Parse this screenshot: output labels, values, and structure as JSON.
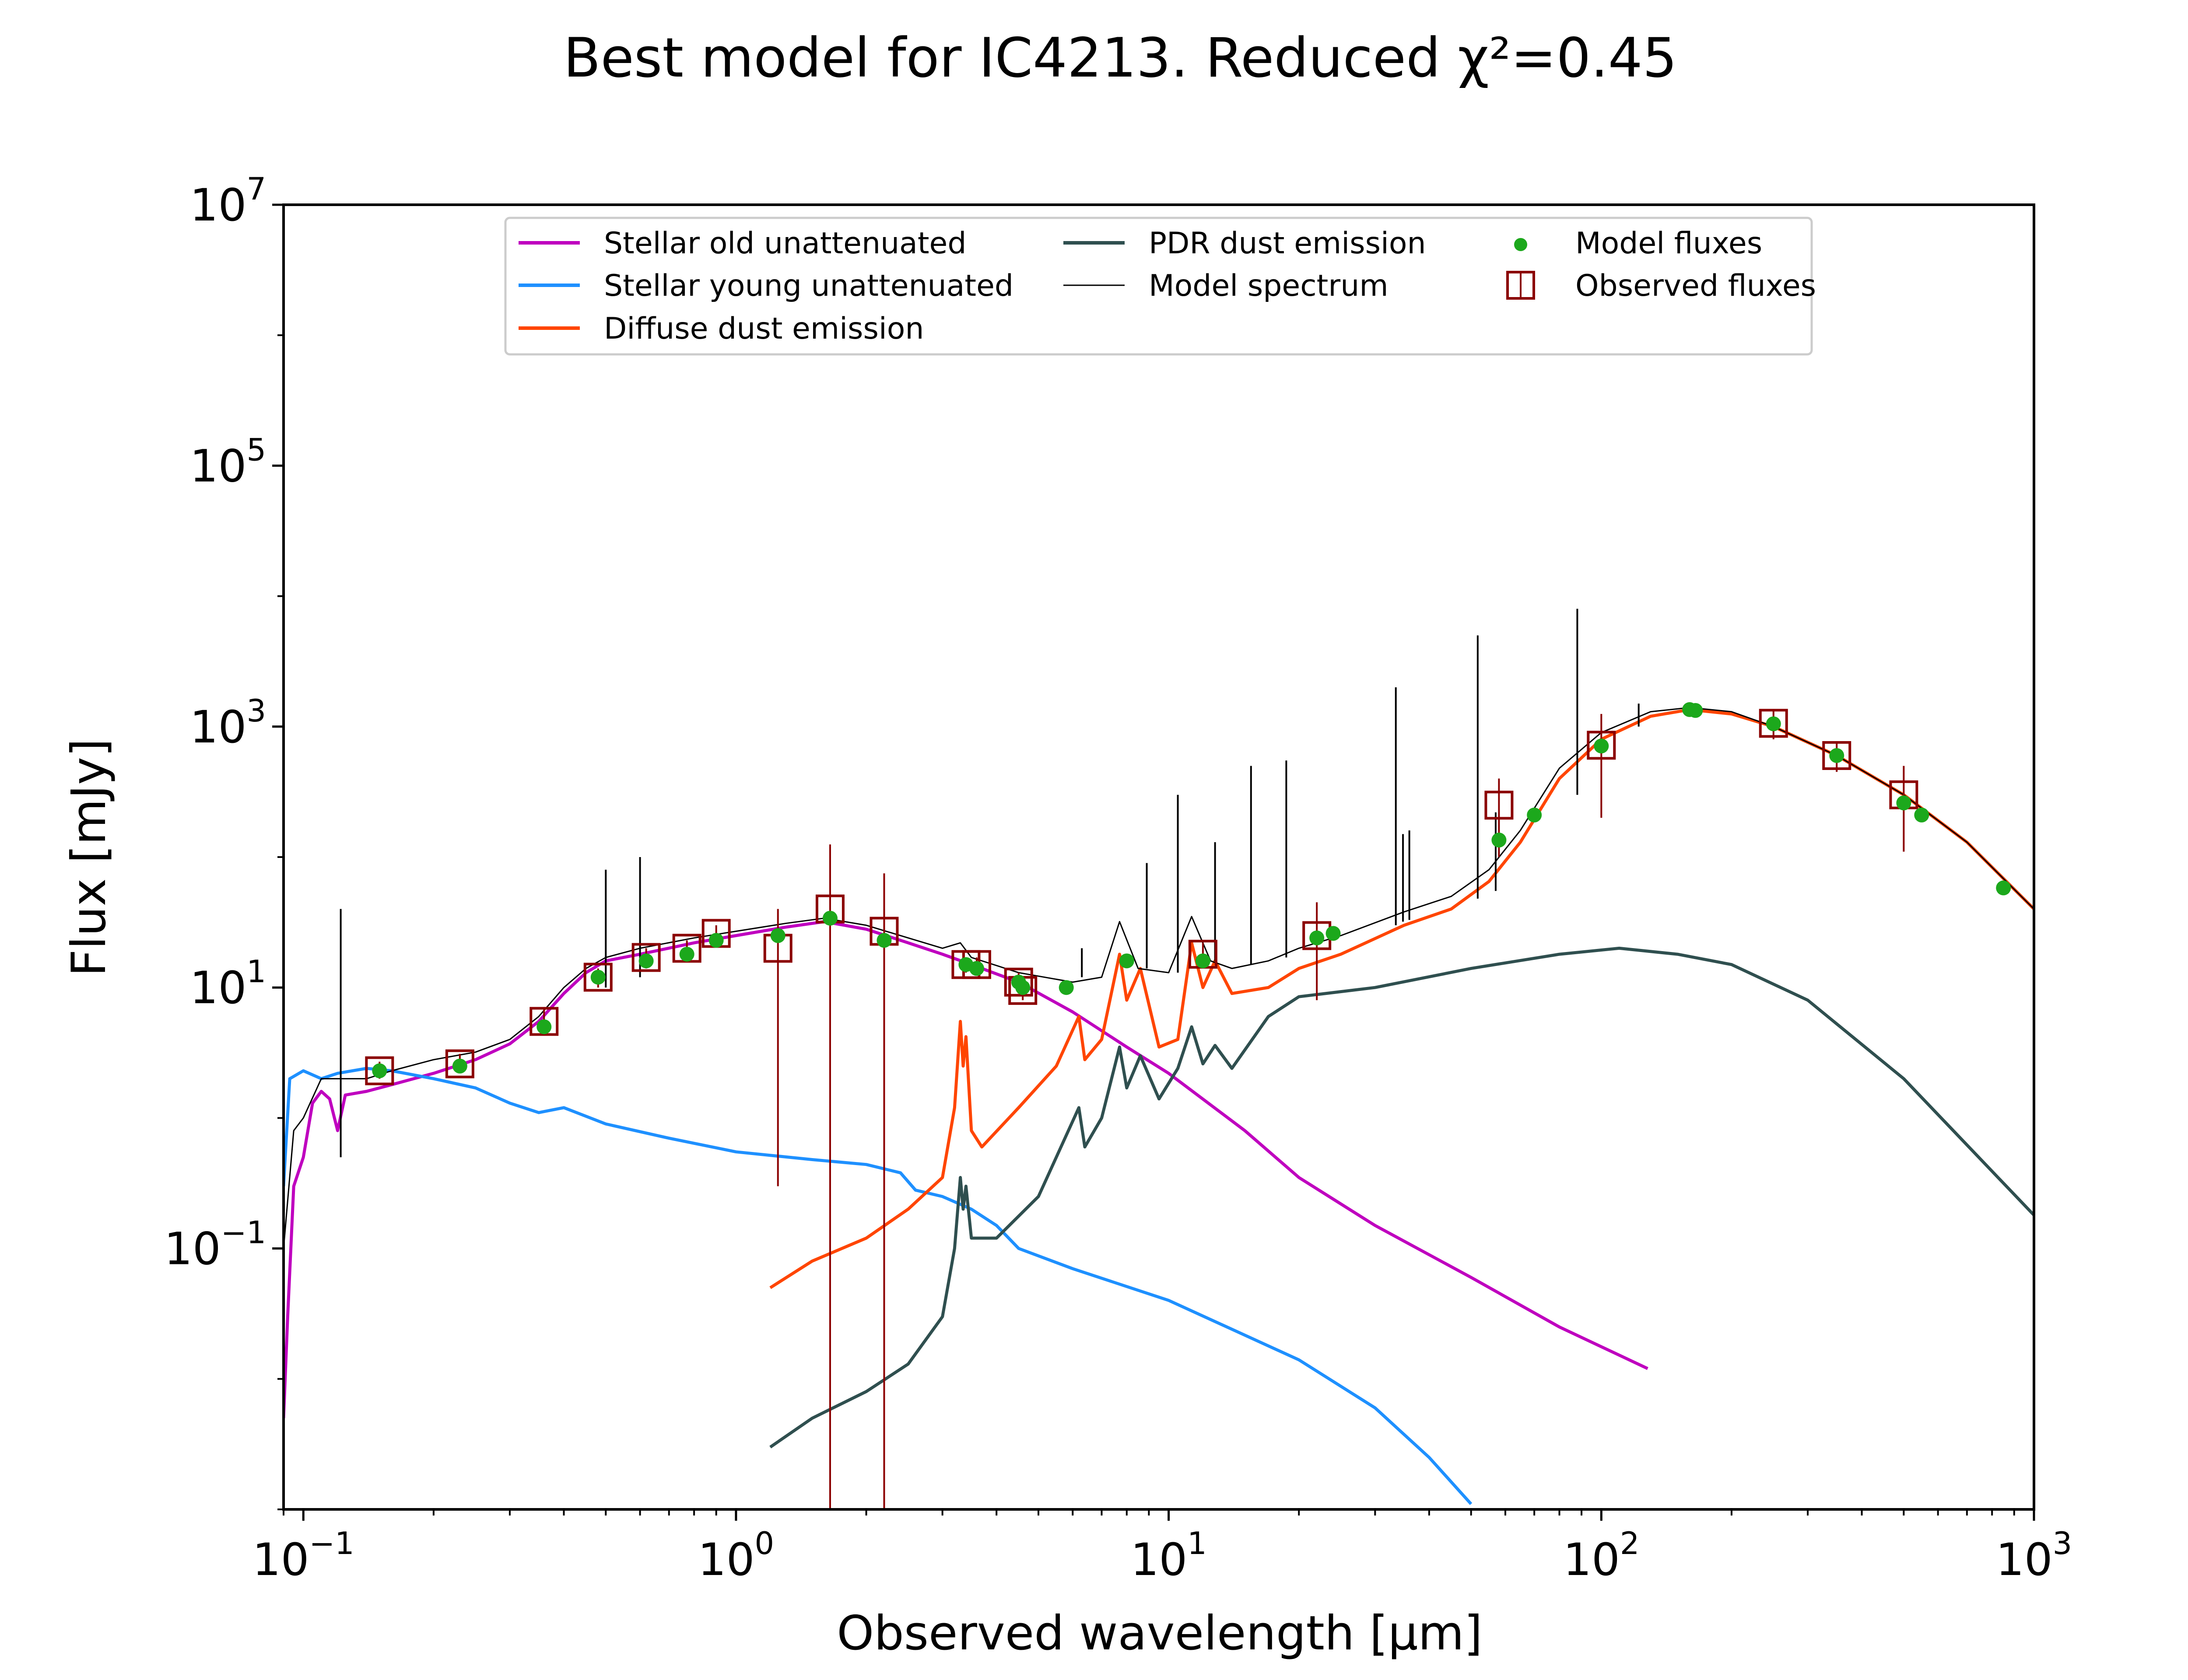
{
  "chart_data": {
    "type": "line",
    "title": "Best model for IC4213. Reduced χ²=0.45",
    "xlabel": "Observed wavelength [μm]",
    "ylabel": "Flux [mJy]",
    "xscale": "log",
    "yscale": "log",
    "xlim": [
      0.09,
      1000
    ],
    "ylim": [
      0.001,
      10000000
    ],
    "x_ticks": [
      {
        "value": 0.1,
        "base": "10",
        "exp": "−1"
      },
      {
        "value": 1,
        "base": "10",
        "exp": "0"
      },
      {
        "value": 10,
        "base": "10",
        "exp": "1"
      },
      {
        "value": 100,
        "base": "10",
        "exp": "2"
      },
      {
        "value": 1000,
        "base": "10",
        "exp": "3"
      }
    ],
    "y_ticks": [
      {
        "value": 0.1,
        "base": "10",
        "exp": "−1"
      },
      {
        "value": 10,
        "base": "10",
        "exp": "1"
      },
      {
        "value": 1000,
        "base": "10",
        "exp": "3"
      },
      {
        "value": 100000,
        "base": "10",
        "exp": "5"
      },
      {
        "value": 10000000,
        "base": "10",
        "exp": "7"
      }
    ],
    "grid": false,
    "legend_position": "top-center",
    "legend": [
      {
        "label": "Stellar old unattenuated",
        "marker": "line",
        "color": "#bf00bf"
      },
      {
        "label": "Stellar young unattenuated",
        "marker": "line",
        "color": "#1e90ff"
      },
      {
        "label": "Diffuse dust emission",
        "marker": "line",
        "color": "#ff4500"
      },
      {
        "label": "PDR dust emission",
        "marker": "line",
        "color": "#2f4f4f"
      },
      {
        "label": "Model spectrum",
        "marker": "thinline",
        "color": "#000000"
      },
      {
        "label": "Model fluxes",
        "marker": "dot",
        "color": "#1ca81c"
      },
      {
        "label": "Observed fluxes",
        "marker": "square",
        "color": "#8b0000"
      }
    ],
    "series": [
      {
        "name": "Stellar old unattenuated",
        "color": "#bf00bf",
        "width": 7,
        "points": [
          [
            0.09,
            0.005
          ],
          [
            0.092,
            0.03
          ],
          [
            0.095,
            0.3
          ],
          [
            0.1,
            0.5
          ],
          [
            0.105,
            1.3
          ],
          [
            0.11,
            1.6
          ],
          [
            0.115,
            1.4
          ],
          [
            0.12,
            0.8
          ],
          [
            0.125,
            1.5
          ],
          [
            0.14,
            1.6
          ],
          [
            0.16,
            1.8
          ],
          [
            0.2,
            2.2
          ],
          [
            0.25,
            2.8
          ],
          [
            0.3,
            3.7
          ],
          [
            0.35,
            5.5
          ],
          [
            0.4,
            9
          ],
          [
            0.45,
            13
          ],
          [
            0.5,
            16
          ],
          [
            0.6,
            18
          ],
          [
            0.8,
            22
          ],
          [
            1.0,
            25
          ],
          [
            1.3,
            29
          ],
          [
            1.6,
            32
          ],
          [
            2.0,
            28
          ],
          [
            2.5,
            22
          ],
          [
            3.0,
            18
          ],
          [
            3.5,
            15
          ],
          [
            4.5,
            11
          ],
          [
            6,
            6.5
          ],
          [
            8,
            3.5
          ],
          [
            10,
            2.2
          ],
          [
            15,
            0.8
          ],
          [
            20,
            0.35
          ],
          [
            30,
            0.15
          ],
          [
            50,
            0.06
          ],
          [
            80,
            0.025
          ],
          [
            128,
            0.012
          ]
        ]
      },
      {
        "name": "Stellar young unattenuated",
        "color": "#1e90ff",
        "width": 7,
        "points": [
          [
            0.09,
            0.3
          ],
          [
            0.093,
            2
          ],
          [
            0.1,
            2.3
          ],
          [
            0.11,
            2.0
          ],
          [
            0.12,
            2.2
          ],
          [
            0.14,
            2.4
          ],
          [
            0.16,
            2.3
          ],
          [
            0.2,
            2.0
          ],
          [
            0.25,
            1.7
          ],
          [
            0.3,
            1.3
          ],
          [
            0.35,
            1.1
          ],
          [
            0.4,
            1.2
          ],
          [
            0.5,
            0.9
          ],
          [
            0.7,
            0.7
          ],
          [
            1.0,
            0.55
          ],
          [
            1.5,
            0.48
          ],
          [
            2.0,
            0.44
          ],
          [
            2.4,
            0.38
          ],
          [
            2.6,
            0.28
          ],
          [
            3.0,
            0.25
          ],
          [
            3.5,
            0.2
          ],
          [
            4.0,
            0.15
          ],
          [
            4.5,
            0.1
          ],
          [
            6,
            0.07
          ],
          [
            10,
            0.04
          ],
          [
            20,
            0.014
          ],
          [
            30,
            0.006
          ],
          [
            40,
            0.0025
          ],
          [
            50,
            0.0011
          ]
        ]
      },
      {
        "name": "Diffuse dust emission",
        "color": "#ff4500",
        "width": 7,
        "points": [
          [
            1.2,
            0.05
          ],
          [
            1.5,
            0.08
          ],
          [
            2,
            0.12
          ],
          [
            2.5,
            0.2
          ],
          [
            3.0,
            0.35
          ],
          [
            3.2,
            1.2
          ],
          [
            3.3,
            5.5
          ],
          [
            3.35,
            2.5
          ],
          [
            3.4,
            4.2
          ],
          [
            3.5,
            0.8
          ],
          [
            3.7,
            0.6
          ],
          [
            4.5,
            1.2
          ],
          [
            5.5,
            2.5
          ],
          [
            6.2,
            6
          ],
          [
            6.4,
            2.8
          ],
          [
            7.0,
            4
          ],
          [
            7.7,
            18
          ],
          [
            8.0,
            8
          ],
          [
            8.6,
            14
          ],
          [
            9.5,
            3.5
          ],
          [
            10.5,
            4
          ],
          [
            11.3,
            22
          ],
          [
            12,
            10
          ],
          [
            12.8,
            16
          ],
          [
            14,
            9
          ],
          [
            17,
            10
          ],
          [
            20,
            14
          ],
          [
            25,
            18
          ],
          [
            35,
            30
          ],
          [
            45,
            40
          ],
          [
            55,
            65
          ],
          [
            65,
            130
          ],
          [
            80,
            400
          ],
          [
            100,
            800
          ],
          [
            130,
            1200
          ],
          [
            160,
            1350
          ],
          [
            200,
            1250
          ],
          [
            250,
            1000
          ],
          [
            350,
            600
          ],
          [
            500,
            300
          ],
          [
            700,
            130
          ],
          [
            1000,
            40
          ]
        ]
      },
      {
        "name": "PDR dust emission",
        "color": "#2f4f4f",
        "width": 7,
        "points": [
          [
            1.2,
            0.003
          ],
          [
            1.5,
            0.005
          ],
          [
            2,
            0.008
          ],
          [
            2.5,
            0.013
          ],
          [
            3.0,
            0.03
          ],
          [
            3.2,
            0.1
          ],
          [
            3.3,
            0.35
          ],
          [
            3.35,
            0.2
          ],
          [
            3.4,
            0.3
          ],
          [
            3.5,
            0.12
          ],
          [
            4,
            0.12
          ],
          [
            5,
            0.25
          ],
          [
            6.2,
            1.2
          ],
          [
            6.4,
            0.6
          ],
          [
            7.0,
            1.0
          ],
          [
            7.7,
            3.5
          ],
          [
            8.0,
            1.7
          ],
          [
            8.6,
            3.0
          ],
          [
            9.5,
            1.4
          ],
          [
            10.5,
            2.4
          ],
          [
            11.3,
            5.0
          ],
          [
            12,
            2.6
          ],
          [
            12.8,
            3.6
          ],
          [
            14,
            2.4
          ],
          [
            17,
            6
          ],
          [
            20,
            8.5
          ],
          [
            30,
            10
          ],
          [
            50,
            14
          ],
          [
            80,
            18
          ],
          [
            110,
            20
          ],
          [
            150,
            18
          ],
          [
            200,
            15
          ],
          [
            300,
            8
          ],
          [
            500,
            2
          ],
          [
            1000,
            0.18
          ]
        ]
      },
      {
        "name": "Model spectrum",
        "color": "#000000",
        "width": 3,
        "points": [
          [
            0.09,
            0.1
          ],
          [
            0.095,
            0.8
          ],
          [
            0.1,
            1.0
          ],
          [
            0.11,
            2.0
          ],
          [
            0.14,
            2.0
          ],
          [
            0.16,
            2.3
          ],
          [
            0.2,
            2.8
          ],
          [
            0.25,
            3.2
          ],
          [
            0.3,
            4
          ],
          [
            0.35,
            6
          ],
          [
            0.4,
            10
          ],
          [
            0.45,
            14
          ],
          [
            0.5,
            17
          ],
          [
            0.6,
            20
          ],
          [
            0.8,
            24
          ],
          [
            1.0,
            27
          ],
          [
            1.3,
            31
          ],
          [
            1.6,
            34
          ],
          [
            2.0,
            30
          ],
          [
            2.5,
            24
          ],
          [
            3.0,
            20
          ],
          [
            3.3,
            22
          ],
          [
            3.5,
            17
          ],
          [
            4.5,
            13
          ],
          [
            6,
            11
          ],
          [
            7,
            12
          ],
          [
            7.7,
            32
          ],
          [
            8.5,
            14
          ],
          [
            10,
            13
          ],
          [
            11.3,
            35
          ],
          [
            12.5,
            16
          ],
          [
            14,
            14
          ],
          [
            17,
            16
          ],
          [
            20,
            20
          ],
          [
            25,
            25
          ],
          [
            35,
            38
          ],
          [
            45,
            50
          ],
          [
            55,
            80
          ],
          [
            65,
            160
          ],
          [
            80,
            480
          ],
          [
            100,
            900
          ],
          [
            130,
            1300
          ],
          [
            160,
            1400
          ],
          [
            200,
            1300
          ],
          [
            250,
            1000
          ],
          [
            350,
            600
          ],
          [
            500,
            300
          ],
          [
            700,
            130
          ],
          [
            1000,
            40
          ]
        ],
        "lines": [
          [
            0.122,
            0.5,
            40
          ],
          [
            0.5,
            10,
            80
          ],
          [
            0.6,
            12,
            100
          ],
          [
            2.2,
            20,
            40
          ],
          [
            6.3,
            12,
            20
          ],
          [
            8.9,
            14,
            90
          ],
          [
            10.5,
            13,
            300
          ],
          [
            12.8,
            16,
            130
          ],
          [
            15.5,
            15,
            500
          ],
          [
            18.7,
            17,
            550
          ],
          [
            33.5,
            30,
            2000
          ],
          [
            34.8,
            32,
            150
          ],
          [
            36,
            33,
            160
          ],
          [
            51.8,
            48,
            5000
          ],
          [
            57,
            55,
            220
          ],
          [
            88,
            300,
            8000
          ],
          [
            122,
            1000,
            1500
          ]
        ]
      }
    ],
    "model_fluxes": {
      "color": "#1ca81c",
      "points": [
        [
          0.15,
          2.3
        ],
        [
          0.23,
          2.5
        ],
        [
          0.36,
          5
        ],
        [
          0.48,
          12
        ],
        [
          0.62,
          16
        ],
        [
          0.77,
          18
        ],
        [
          0.9,
          23
        ],
        [
          1.25,
          25
        ],
        [
          1.65,
          34
        ],
        [
          2.2,
          23
        ],
        [
          3.4,
          15
        ],
        [
          3.6,
          14
        ],
        [
          4.5,
          11
        ],
        [
          4.6,
          10
        ],
        [
          5.8,
          10
        ],
        [
          8.0,
          16
        ],
        [
          12,
          16
        ],
        [
          22,
          24
        ],
        [
          24,
          26
        ],
        [
          58,
          135
        ],
        [
          70,
          210
        ],
        [
          100,
          710
        ],
        [
          160,
          1350
        ],
        [
          165,
          1330
        ],
        [
          250,
          1050
        ],
        [
          350,
          600
        ],
        [
          500,
          260
        ],
        [
          550,
          210
        ],
        [
          850,
          58
        ]
      ]
    },
    "observed_fluxes": {
      "color": "#8b0000",
      "points": [
        {
          "x": 0.15,
          "y": 2.3,
          "lo": 2.0,
          "hi": 2.7
        },
        {
          "x": 0.23,
          "y": 2.6,
          "lo": 2.2,
          "hi": 3.1
        },
        {
          "x": 0.36,
          "y": 5.5,
          "lo": 4.3,
          "hi": 7
        },
        {
          "x": 0.48,
          "y": 12,
          "lo": 10,
          "hi": 14
        },
        {
          "x": 0.62,
          "y": 17,
          "lo": 14,
          "hi": 20
        },
        {
          "x": 0.77,
          "y": 20,
          "lo": 17,
          "hi": 23
        },
        {
          "x": 0.9,
          "y": 26,
          "lo": 22,
          "hi": 30
        },
        {
          "x": 1.25,
          "y": 20,
          "lo": 0.3,
          "hi": 40
        },
        {
          "x": 1.65,
          "y": 40,
          "lo": 0.001,
          "hi": 125
        },
        {
          "x": 2.2,
          "y": 27,
          "lo": 0.001,
          "hi": 75
        },
        {
          "x": 3.4,
          "y": 15,
          "lo": 13,
          "hi": 17
        },
        {
          "x": 3.6,
          "y": 15,
          "lo": 13,
          "hi": 17
        },
        {
          "x": 4.5,
          "y": 11,
          "lo": 9,
          "hi": 13
        },
        {
          "x": 4.6,
          "y": 9.5,
          "lo": 8,
          "hi": 11
        },
        {
          "x": 12,
          "y": 18,
          "lo": 14,
          "hi": 22
        },
        {
          "x": 22,
          "y": 25,
          "lo": 8,
          "hi": 45
        },
        {
          "x": 58,
          "y": 250,
          "lo": 100,
          "hi": 400
        },
        {
          "x": 100,
          "y": 720,
          "lo": 200,
          "hi": 1250
        },
        {
          "x": 250,
          "y": 1060,
          "lo": 800,
          "hi": 1320
        },
        {
          "x": 350,
          "y": 600,
          "lo": 450,
          "hi": 750
        },
        {
          "x": 500,
          "y": 300,
          "lo": 110,
          "hi": 500
        }
      ]
    }
  }
}
